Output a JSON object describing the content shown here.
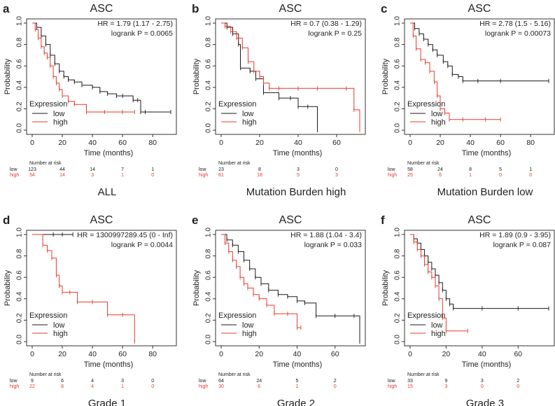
{
  "colors": {
    "low": "#1a1a1a",
    "high": "#e8392b",
    "axis": "#333333",
    "text": "#222222"
  },
  "chart_data": [
    {
      "panel_letter": "a",
      "type": "line",
      "title": "ASC",
      "subtitle": "ALL",
      "xlabel": "Time (months)",
      "ylabel": "Probability",
      "xlim": [
        0,
        92
      ],
      "xticks": [
        0,
        20,
        40,
        60,
        80
      ],
      "ylim": [
        0,
        1
      ],
      "yticks": [
        "0.0",
        "0.2",
        "0.4",
        "0.6",
        "0.8",
        "1.0"
      ],
      "hr_text": "HR = 1.79 (1.17 - 2.75)",
      "logrank_text": "logrank P = 0.0065",
      "legend": {
        "title": "Expression",
        "entries": [
          "low",
          "high"
        ],
        "placement": "bottom-left"
      },
      "series": [
        {
          "name": "low",
          "x": [
            0,
            3,
            6,
            9,
            12,
            15,
            18,
            21,
            24,
            28,
            33,
            40,
            45,
            50,
            56,
            60,
            67,
            70,
            72,
            75,
            92
          ],
          "y": [
            1.0,
            0.96,
            0.88,
            0.8,
            0.7,
            0.62,
            0.55,
            0.5,
            0.47,
            0.45,
            0.42,
            0.4,
            0.36,
            0.34,
            0.32,
            0.32,
            0.28,
            0.28,
            0.17,
            0.17,
            0.17
          ]
        },
        {
          "name": "high",
          "x": [
            0,
            2,
            4,
            6,
            8,
            10,
            12,
            14,
            16,
            18,
            20,
            24,
            28,
            36,
            48,
            60,
            68
          ],
          "y": [
            1.0,
            0.94,
            0.86,
            0.78,
            0.72,
            0.68,
            0.6,
            0.5,
            0.44,
            0.38,
            0.32,
            0.27,
            0.24,
            0.17,
            0.17,
            0.17,
            0.17
          ]
        }
      ],
      "risk": {
        "header": "Number at risk",
        "times": [
          0,
          20,
          40,
          60,
          80
        ],
        "low": [
          "123",
          "44",
          "14",
          "7",
          "1"
        ],
        "high": [
          "54",
          "14",
          "3",
          "1",
          "0"
        ]
      }
    },
    {
      "panel_letter": "b",
      "type": "line",
      "title": "ASC",
      "subtitle": "Mutation Burden high",
      "xlabel": "Time (months)",
      "ylabel": "Probability",
      "xlim": [
        0,
        72
      ],
      "xticks": [
        0,
        20,
        40,
        60
      ],
      "ylim": [
        0,
        1
      ],
      "yticks": [
        "0.0",
        "0.2",
        "0.4",
        "0.6",
        "0.8",
        "1.0"
      ],
      "hr_text": "HR = 0.7 (0.38 - 1.29)",
      "logrank_text": "logrank P = 0.25",
      "legend": {
        "title": "Expression",
        "entries": [
          "low",
          "high"
        ],
        "placement": "bottom-left"
      },
      "series": [
        {
          "name": "low",
          "x": [
            0,
            3,
            6,
            9,
            10,
            15,
            18,
            22,
            30,
            36,
            40,
            45,
            50
          ],
          "y": [
            1.0,
            0.96,
            0.9,
            0.8,
            0.58,
            0.55,
            0.48,
            0.35,
            0.3,
            0.3,
            0.22,
            0.22,
            0.0
          ]
        },
        {
          "name": "high",
          "x": [
            0,
            2,
            5,
            8,
            11,
            14,
            17,
            20,
            22,
            25,
            30,
            40,
            50,
            65,
            69,
            72
          ],
          "y": [
            1.0,
            0.97,
            0.92,
            0.86,
            0.77,
            0.64,
            0.55,
            0.5,
            0.44,
            0.39,
            0.39,
            0.39,
            0.39,
            0.39,
            0.19,
            0.0
          ]
        }
      ],
      "risk": {
        "header": "Number at risk",
        "times": [
          0,
          20,
          40,
          60
        ],
        "low": [
          "23",
          "8",
          "3",
          "0"
        ],
        "high": [
          "61",
          "18",
          "5",
          "3"
        ]
      }
    },
    {
      "panel_letter": "c",
      "type": "line",
      "title": "ASC",
      "subtitle": "Mutation Burden low",
      "xlabel": "Time (months)",
      "ylabel": "Probability",
      "xlim": [
        0,
        92
      ],
      "xticks": [
        0,
        20,
        40,
        60,
        80
      ],
      "ylim": [
        0,
        1
      ],
      "yticks": [
        "0.0",
        "0.2",
        "0.4",
        "0.6",
        "0.8",
        "1.0"
      ],
      "hr_text": "HR = 2.78 (1.5 - 5.16)",
      "logrank_text": "logrank P = 0.00073",
      "legend": {
        "title": "Expression",
        "entries": [
          "low",
          "high"
        ],
        "placement": "bottom-left"
      },
      "series": [
        {
          "name": "low",
          "x": [
            0,
            3,
            6,
            9,
            12,
            15,
            18,
            22,
            25,
            28,
            32,
            35,
            45,
            60,
            92
          ],
          "y": [
            1.0,
            0.95,
            0.9,
            0.85,
            0.8,
            0.75,
            0.7,
            0.64,
            0.6,
            0.52,
            0.5,
            0.46,
            0.46,
            0.46,
            0.46
          ]
        },
        {
          "name": "high",
          "x": [
            0,
            2,
            4,
            7,
            10,
            13,
            16,
            18,
            20,
            23,
            26,
            35,
            50,
            60
          ],
          "y": [
            1.0,
            0.88,
            0.76,
            0.66,
            0.63,
            0.55,
            0.45,
            0.32,
            0.2,
            0.16,
            0.1,
            0.1,
            0.1,
            0.1
          ]
        }
      ],
      "risk": {
        "header": "Number at risk",
        "times": [
          0,
          20,
          40,
          60,
          80
        ],
        "low": [
          "58",
          "24",
          "8",
          "5",
          "1"
        ],
        "high": [
          "25",
          "6",
          "1",
          "0",
          "0"
        ]
      }
    },
    {
      "panel_letter": "d",
      "type": "line",
      "title": "ASC",
      "subtitle": "Grade 1",
      "xlabel": "Time (months)",
      "ylabel": "Probability",
      "xlim": [
        0,
        92
      ],
      "xticks": [
        0,
        20,
        40,
        60,
        80
      ],
      "ylim": [
        0,
        1
      ],
      "yticks": [
        "0.0",
        "0.2",
        "0.4",
        "0.6",
        "0.8",
        "1.0"
      ],
      "hr_text": "HR = 1300997289.45 (0 - Inf)",
      "logrank_text": "logrank P = 0.0044",
      "legend": {
        "title": "Expression",
        "entries": [
          "low",
          "high"
        ],
        "placement": "bottom-left"
      },
      "series": [
        {
          "name": "low",
          "x": [
            0,
            14,
            20,
            27
          ],
          "y": [
            1.0,
            1.0,
            1.0,
            1.0
          ]
        },
        {
          "name": "high",
          "x": [
            0,
            7,
            10,
            13,
            16,
            18,
            20,
            25,
            30,
            40,
            50,
            60,
            68
          ],
          "y": [
            1.0,
            0.9,
            0.85,
            0.78,
            0.62,
            0.52,
            0.46,
            0.46,
            0.37,
            0.37,
            0.25,
            0.25,
            0.0
          ]
        }
      ],
      "risk": {
        "header": "Number at risk",
        "times": [
          0,
          20,
          40,
          60,
          80
        ],
        "low": [
          "9",
          "6",
          "4",
          "3",
          "0"
        ],
        "high": [
          "22",
          "8",
          "4",
          "1",
          "0"
        ]
      }
    },
    {
      "panel_letter": "e",
      "type": "line",
      "title": "ASC",
      "subtitle": "Grade 2",
      "xlabel": "Time (months)",
      "ylabel": "Probability",
      "xlim": [
        0,
        73
      ],
      "xticks": [
        0,
        20,
        40,
        60
      ],
      "ylim": [
        0,
        1
      ],
      "yticks": [
        "0.0",
        "0.2",
        "0.4",
        "0.6",
        "0.8",
        "1.0"
      ],
      "hr_text": "HR = 1.88 (1.04 - 3.4)",
      "logrank_text": "logrank P = 0.033",
      "legend": {
        "title": "Expression",
        "entries": [
          "low",
          "high"
        ],
        "placement": "bottom-left"
      },
      "series": [
        {
          "name": "low",
          "x": [
            0,
            3,
            6,
            9,
            12,
            15,
            18,
            21,
            25,
            30,
            35,
            40,
            44,
            50,
            60,
            70,
            73
          ],
          "y": [
            1.0,
            0.95,
            0.9,
            0.84,
            0.76,
            0.68,
            0.6,
            0.54,
            0.48,
            0.44,
            0.42,
            0.38,
            0.36,
            0.24,
            0.24,
            0.24,
            0.0
          ]
        },
        {
          "name": "high",
          "x": [
            0,
            2,
            4,
            6,
            8,
            10,
            12,
            14,
            17,
            20,
            24,
            28,
            35,
            40,
            42
          ],
          "y": [
            1.0,
            0.92,
            0.84,
            0.76,
            0.7,
            0.6,
            0.54,
            0.5,
            0.44,
            0.4,
            0.34,
            0.26,
            0.26,
            0.13,
            0.13
          ]
        }
      ],
      "risk": {
        "header": "Number at risk",
        "times": [
          0,
          20,
          40,
          60
        ],
        "low": [
          "64",
          "24",
          "5",
          "2"
        ],
        "high": [
          "30",
          "6",
          "1",
          "0"
        ]
      }
    },
    {
      "panel_letter": "f",
      "type": "line",
      "title": "ASC",
      "subtitle": "Grade 3",
      "xlabel": "Time (months)",
      "ylabel": "Probability",
      "xlim": [
        0,
        77
      ],
      "xticks": [
        0,
        20,
        40,
        60
      ],
      "ylim": [
        0,
        1
      ],
      "yticks": [
        "0.0",
        "0.2",
        "0.4",
        "0.6",
        "0.8",
        "1.0"
      ],
      "hr_text": "HR = 1.89 (0.9 - 3.95)",
      "logrank_text": "logrank P = 0.087",
      "legend": {
        "title": "Expression",
        "entries": [
          "low",
          "high"
        ],
        "placement": "bottom-left"
      },
      "series": [
        {
          "name": "low",
          "x": [
            0,
            2,
            4,
            6,
            8,
            10,
            12,
            14,
            16,
            18,
            20,
            22,
            24,
            40,
            60,
            77
          ],
          "y": [
            1.0,
            0.96,
            0.92,
            0.86,
            0.8,
            0.74,
            0.68,
            0.62,
            0.55,
            0.48,
            0.4,
            0.35,
            0.31,
            0.31,
            0.31,
            0.31
          ]
        },
        {
          "name": "high",
          "x": [
            0,
            2,
            4,
            6,
            8,
            10,
            12,
            14,
            16,
            18,
            20,
            32
          ],
          "y": [
            1.0,
            0.93,
            0.86,
            0.8,
            0.72,
            0.65,
            0.6,
            0.52,
            0.4,
            0.22,
            0.1,
            0.1
          ]
        }
      ],
      "risk": {
        "header": "Number at risk",
        "times": [
          0,
          20,
          40,
          60
        ],
        "low": [
          "33",
          "9",
          "3",
          "2"
        ],
        "high": [
          "15",
          "3",
          "0",
          "0"
        ]
      }
    }
  ]
}
